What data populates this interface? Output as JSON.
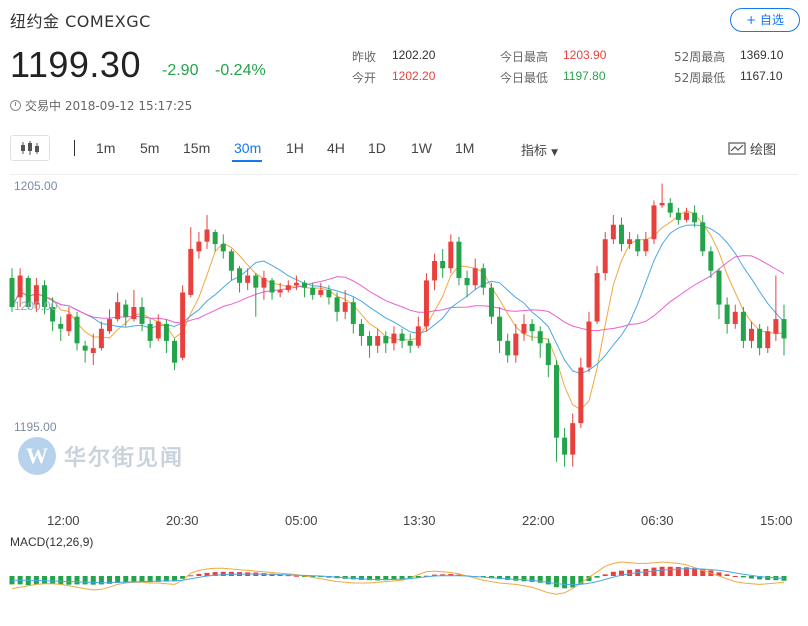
{
  "header": {
    "title": "纽约金 COMEXGC",
    "follow_label": "+ 自选",
    "price": "1199.30",
    "change_abs": "-2.90",
    "change_pct": "-0.24%",
    "status": "交易中 2018-09-12 15:17:25"
  },
  "stats": {
    "prev_close_label": "昨收",
    "prev_close": "1202.20",
    "open_label": "今开",
    "open": "1202.20",
    "high_label": "今日最高",
    "high": "1203.90",
    "low_label": "今日最低",
    "low": "1197.80",
    "w52_high_label": "52周最高",
    "w52_high": "1369.10",
    "w52_low_label": "52周最低",
    "w52_low": "1167.10"
  },
  "toolbar": {
    "timeframes": [
      "1m",
      "5m",
      "15m",
      "30m",
      "1H",
      "4H",
      "1D",
      "1W",
      "1M"
    ],
    "active_timeframe": "30m",
    "indicator_label": "指标",
    "draw_label": "绘图"
  },
  "chart": {
    "y_labels": [
      "1205.00",
      "1200.00",
      "1195.00"
    ],
    "x_labels": [
      "12:00",
      "20:30",
      "05:00",
      "13:30",
      "22:00",
      "06:30",
      "15:00"
    ],
    "macd_label": "MACD(12,26,9)",
    "watermark": "华尔街见闻",
    "colors": {
      "up": "#e8413d",
      "down": "#23a34a",
      "ma_short": "#f0a840",
      "ma_mid": "#4aa8e8",
      "ma_long": "#e860d0",
      "macd_dif": "#f0a840",
      "macd_dea": "#4aa8e8"
    }
  },
  "chart_data": {
    "type": "candlestick",
    "ylim": [
      1193.2,
      1205.6
    ],
    "candles": [
      [
        1201.2,
        1200.0,
        1201.6,
        1199.8
      ],
      [
        1200.4,
        1201.3,
        1201.6,
        1200.0
      ],
      [
        1201.2,
        1200.0,
        1201.3,
        1199.9
      ],
      [
        1200.1,
        1200.9,
        1201.2,
        1199.8
      ],
      [
        1200.9,
        1200.0,
        1201.1,
        1199.7
      ],
      [
        1200.0,
        1199.4,
        1200.4,
        1199.0
      ],
      [
        1199.3,
        1199.1,
        1199.6,
        1198.6
      ],
      [
        1199.0,
        1199.7,
        1200.0,
        1198.8
      ],
      [
        1199.6,
        1198.5,
        1199.8,
        1198.2
      ],
      [
        1198.4,
        1198.2,
        1198.6,
        1197.7
      ],
      [
        1198.1,
        1198.3,
        1198.9,
        1197.6
      ],
      [
        1198.3,
        1199.1,
        1199.4,
        1198.2
      ],
      [
        1199.0,
        1199.5,
        1199.9,
        1198.9
      ],
      [
        1199.5,
        1200.2,
        1200.6,
        1199.4
      ],
      [
        1200.1,
        1199.6,
        1200.3,
        1199.2
      ],
      [
        1199.5,
        1200.0,
        1200.7,
        1199.4
      ],
      [
        1200.0,
        1199.3,
        1200.4,
        1199.0
      ],
      [
        1199.3,
        1198.6,
        1199.5,
        1198.3
      ],
      [
        1198.7,
        1199.4,
        1199.7,
        1198.6
      ],
      [
        1199.3,
        1198.6,
        1199.5,
        1198.1
      ],
      [
        1198.6,
        1197.7,
        1198.7,
        1197.4
      ],
      [
        1197.9,
        1200.6,
        1200.9,
        1197.8
      ],
      [
        1200.5,
        1202.4,
        1203.3,
        1200.4
      ],
      [
        1202.3,
        1202.7,
        1203.1,
        1202.0
      ],
      [
        1202.7,
        1203.2,
        1203.8,
        1202.4
      ],
      [
        1203.1,
        1202.6,
        1203.2,
        1202.3
      ],
      [
        1202.6,
        1202.3,
        1203.0,
        1202.0
      ],
      [
        1202.3,
        1201.5,
        1202.4,
        1201.1
      ],
      [
        1201.6,
        1201.0,
        1201.7,
        1200.6
      ],
      [
        1201.0,
        1201.3,
        1201.6,
        1200.7
      ],
      [
        1201.3,
        1200.8,
        1201.4,
        1199.6
      ],
      [
        1200.8,
        1201.2,
        1201.5,
        1200.3
      ],
      [
        1201.1,
        1200.6,
        1201.2,
        1200.3
      ],
      [
        1200.6,
        1200.7,
        1201.0,
        1200.4
      ],
      [
        1200.7,
        1200.9,
        1201.1,
        1200.6
      ],
      [
        1200.9,
        1201.0,
        1201.3,
        1200.7
      ],
      [
        1201.0,
        1200.8,
        1201.1,
        1200.4
      ],
      [
        1200.8,
        1200.5,
        1201.0,
        1200.3
      ],
      [
        1200.5,
        1200.7,
        1201.0,
        1200.4
      ],
      [
        1200.7,
        1200.4,
        1200.9,
        1200.1
      ],
      [
        1200.4,
        1199.8,
        1200.6,
        1199.4
      ],
      [
        1199.8,
        1200.2,
        1200.7,
        1199.5
      ],
      [
        1200.2,
        1199.3,
        1200.4,
        1198.9
      ],
      [
        1199.3,
        1198.8,
        1199.5,
        1198.4
      ],
      [
        1198.8,
        1198.4,
        1199.0,
        1197.9
      ],
      [
        1198.4,
        1198.8,
        1199.1,
        1198.1
      ],
      [
        1198.8,
        1198.5,
        1199.0,
        1198.1
      ],
      [
        1198.5,
        1198.9,
        1199.2,
        1198.2
      ],
      [
        1198.9,
        1198.6,
        1199.1,
        1198.3
      ],
      [
        1198.6,
        1198.4,
        1198.9,
        1198.1
      ],
      [
        1198.4,
        1199.2,
        1199.6,
        1198.3
      ],
      [
        1199.2,
        1201.1,
        1201.4,
        1199.0
      ],
      [
        1201.1,
        1201.9,
        1202.2,
        1200.7
      ],
      [
        1201.9,
        1201.6,
        1202.4,
        1201.2
      ],
      [
        1201.6,
        1202.7,
        1203.0,
        1201.4
      ],
      [
        1202.7,
        1201.2,
        1202.9,
        1200.9
      ],
      [
        1201.2,
        1200.9,
        1201.5,
        1200.4
      ],
      [
        1200.9,
        1201.6,
        1202.0,
        1200.7
      ],
      [
        1201.6,
        1200.8,
        1201.8,
        1200.5
      ],
      [
        1200.8,
        1199.6,
        1201.0,
        1199.3
      ],
      [
        1199.6,
        1198.6,
        1200.0,
        1198.1
      ],
      [
        1198.6,
        1198.0,
        1198.9,
        1197.7
      ],
      [
        1198.0,
        1198.9,
        1199.3,
        1197.7
      ],
      [
        1198.9,
        1199.3,
        1199.7,
        1198.6
      ],
      [
        1199.3,
        1199.0,
        1199.5,
        1198.6
      ],
      [
        1199.0,
        1198.5,
        1199.2,
        1197.9
      ],
      [
        1198.5,
        1197.6,
        1198.7,
        1197.1
      ],
      [
        1197.6,
        1194.6,
        1197.8,
        1193.6
      ],
      [
        1194.6,
        1193.9,
        1195.0,
        1193.4
      ],
      [
        1193.9,
        1195.2,
        1195.6,
        1193.4
      ],
      [
        1195.2,
        1197.5,
        1197.9,
        1195.0
      ],
      [
        1197.5,
        1199.4,
        1199.8,
        1197.3
      ],
      [
        1199.4,
        1201.4,
        1201.7,
        1199.3
      ],
      [
        1201.4,
        1202.8,
        1203.1,
        1201.1
      ],
      [
        1202.8,
        1203.4,
        1203.8,
        1202.6
      ],
      [
        1203.4,
        1202.6,
        1203.7,
        1202.3
      ],
      [
        1202.6,
        1202.8,
        1203.1,
        1202.4
      ],
      [
        1202.8,
        1202.3,
        1203.0,
        1202.1
      ],
      [
        1202.3,
        1202.8,
        1203.1,
        1202.1
      ],
      [
        1202.8,
        1204.2,
        1204.4,
        1202.6
      ],
      [
        1204.2,
        1204.3,
        1205.1,
        1204.1
      ],
      [
        1204.3,
        1203.9,
        1204.5,
        1203.7
      ],
      [
        1203.9,
        1203.6,
        1204.1,
        1203.4
      ],
      [
        1203.6,
        1203.9,
        1204.1,
        1203.5
      ],
      [
        1203.9,
        1203.5,
        1204.2,
        1203.3
      ],
      [
        1203.5,
        1202.3,
        1203.8,
        1202.1
      ],
      [
        1202.3,
        1201.5,
        1202.5,
        1201.2
      ],
      [
        1201.5,
        1200.1,
        1201.6,
        1199.5
      ],
      [
        1200.1,
        1199.3,
        1200.4,
        1198.9
      ],
      [
        1199.3,
        1199.8,
        1200.1,
        1199.1
      ],
      [
        1199.8,
        1198.6,
        1200.0,
        1198.3
      ],
      [
        1198.6,
        1199.1,
        1199.4,
        1198.3
      ],
      [
        1199.1,
        1198.3,
        1199.3,
        1198.0
      ],
      [
        1198.3,
        1199.0,
        1199.2,
        1198.1
      ],
      [
        1198.9,
        1199.5,
        1201.3,
        1198.6
      ],
      [
        1199.5,
        1198.7,
        1200.1,
        1198.0
      ]
    ],
    "macd": {
      "hist": [
        -0.6,
        -0.6,
        -0.65,
        -0.6,
        -0.55,
        -0.55,
        -0.6,
        -0.62,
        -0.6,
        -0.6,
        -0.62,
        -0.6,
        -0.56,
        -0.5,
        -0.46,
        -0.44,
        -0.42,
        -0.44,
        -0.42,
        -0.4,
        -0.38,
        -0.2,
        0.05,
        0.15,
        0.22,
        0.28,
        0.3,
        0.3,
        0.28,
        0.26,
        0.25,
        0.2,
        0.16,
        0.1,
        0.06,
        0.02,
        -0.02,
        -0.05,
        -0.08,
        -0.12,
        -0.16,
        -0.2,
        -0.24,
        -0.28,
        -0.3,
        -0.32,
        -0.3,
        -0.28,
        -0.26,
        -0.22,
        -0.12,
        0.02,
        0.1,
        0.12,
        0.14,
        0.1,
        0.04,
        -0.04,
        -0.1,
        -0.16,
        -0.22,
        -0.28,
        -0.34,
        -0.38,
        -0.42,
        -0.48,
        -0.6,
        -0.8,
        -0.88,
        -0.82,
        -0.6,
        -0.36,
        -0.12,
        0.12,
        0.3,
        0.38,
        0.44,
        0.48,
        0.5,
        0.6,
        0.66,
        0.66,
        0.64,
        0.62,
        0.58,
        0.5,
        0.4,
        0.26,
        0.12,
        0.0,
        -0.1,
        -0.18,
        -0.24,
        -0.28,
        -0.3,
        -0.34
      ],
      "dif": [
        -0.9,
        -0.8,
        -0.7,
        -0.6,
        -0.55,
        -0.55,
        -0.6,
        -0.7,
        -0.8,
        -0.9,
        -1.0,
        -0.95,
        -0.8,
        -0.6,
        -0.5,
        -0.45,
        -0.45,
        -0.5,
        -0.5,
        -0.55,
        -0.6,
        -0.3,
        0.2,
        0.4,
        0.5,
        0.55,
        0.55,
        0.5,
        0.45,
        0.4,
        0.35,
        0.3,
        0.25,
        0.2,
        0.15,
        0.1,
        0.0,
        -0.1,
        -0.2,
        -0.3,
        -0.4,
        -0.45,
        -0.5,
        -0.5,
        -0.5,
        -0.45,
        -0.4,
        -0.35,
        -0.3,
        -0.15,
        0.1,
        0.3,
        0.35,
        0.3,
        0.25,
        0.15,
        0.0,
        -0.15,
        -0.3,
        -0.4,
        -0.5,
        -0.55,
        -0.6,
        -0.7,
        -0.8,
        -1.0,
        -1.2,
        -1.3,
        -1.2,
        -0.9,
        -0.5,
        -0.1,
        0.3,
        0.7,
        0.9,
        1.0,
        0.95,
        0.9,
        0.9,
        0.95,
        1.0,
        0.95,
        0.9,
        0.8,
        0.6,
        0.4,
        0.2,
        0.0,
        -0.2,
        -0.4,
        -0.5,
        -0.55,
        -0.6,
        -0.55,
        -0.5,
        -0.45
      ],
      "dea": [
        -0.3,
        -0.3,
        -0.3,
        -0.32,
        -0.34,
        -0.36,
        -0.38,
        -0.4,
        -0.42,
        -0.44,
        -0.46,
        -0.48,
        -0.48,
        -0.46,
        -0.44,
        -0.42,
        -0.4,
        -0.38,
        -0.36,
        -0.35,
        -0.34,
        -0.3,
        -0.2,
        -0.1,
        0.0,
        0.06,
        0.1,
        0.12,
        0.13,
        0.14,
        0.14,
        0.13,
        0.12,
        0.1,
        0.08,
        0.06,
        0.04,
        0.02,
        0.0,
        -0.04,
        -0.08,
        -0.12,
        -0.16,
        -0.2,
        -0.24,
        -0.26,
        -0.26,
        -0.24,
        -0.22,
        -0.18,
        -0.12,
        -0.06,
        0.0,
        0.02,
        0.03,
        0.02,
        0.0,
        -0.04,
        -0.08,
        -0.12,
        -0.16,
        -0.2,
        -0.24,
        -0.28,
        -0.32,
        -0.38,
        -0.46,
        -0.54,
        -0.6,
        -0.62,
        -0.6,
        -0.52,
        -0.4,
        -0.24,
        -0.08,
        0.06,
        0.16,
        0.24,
        0.3,
        0.36,
        0.42,
        0.46,
        0.5,
        0.52,
        0.52,
        0.5,
        0.46,
        0.4,
        0.32,
        0.22,
        0.12,
        0.04,
        -0.04,
        -0.1,
        -0.14,
        -0.16
      ]
    }
  }
}
